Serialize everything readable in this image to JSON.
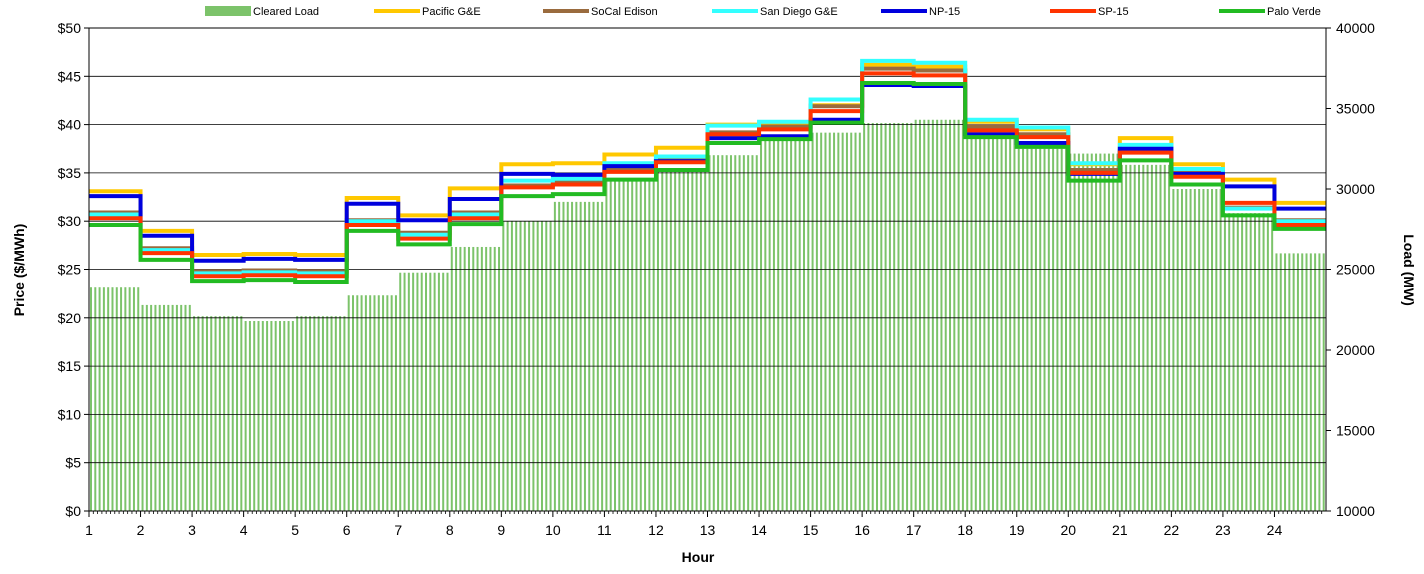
{
  "chart_data": {
    "type": "line",
    "hours": [
      "1",
      "2",
      "3",
      "4",
      "5",
      "6",
      "7",
      "8",
      "9",
      "10",
      "11",
      "12",
      "13",
      "14",
      "15",
      "16",
      "17",
      "18",
      "19",
      "20",
      "21",
      "22",
      "23",
      "24"
    ],
    "xlabel": "Hour",
    "ylabel_left": "Price ($/MWh)",
    "ylabel_right": "Load (MW)",
    "ylim_left": [
      0,
      50
    ],
    "ylim_right": [
      10000,
      40000
    ],
    "yticks_left": [
      "$0",
      "$5",
      "$10",
      "$15",
      "$20",
      "$25",
      "$30",
      "$35",
      "$40",
      "$45",
      "$50"
    ],
    "yticks_right": [
      "10000",
      "15000",
      "20000",
      "25000",
      "30000",
      "35000",
      "40000"
    ],
    "grid": "horizontal",
    "legend_position": "top",
    "load": {
      "name": "Cleared Load",
      "color": "#7cc36a",
      "values": [
        23900,
        22800,
        22100,
        21800,
        22100,
        23400,
        24800,
        26400,
        28000,
        29200,
        30500,
        31200,
        32100,
        33000,
        33500,
        34100,
        34300,
        33400,
        32500,
        32200,
        31500,
        30000,
        28500,
        26000
      ]
    },
    "series": [
      {
        "name": "Pacific G&E",
        "color": "#ffc800",
        "values": [
          33.1,
          29.0,
          26.5,
          26.6,
          26.5,
          32.4,
          30.6,
          33.4,
          35.9,
          36.0,
          36.9,
          37.6,
          40.0,
          40.1,
          42.0,
          46.2,
          46.0,
          40.3,
          39.5,
          35.9,
          38.6,
          35.9,
          34.3,
          31.9
        ]
      },
      {
        "name": "SoCal Edison",
        "color": "#9a6b3e",
        "values": [
          30.9,
          27.2,
          24.8,
          24.9,
          24.8,
          30.1,
          28.8,
          30.9,
          33.7,
          34.0,
          35.4,
          36.4,
          39.2,
          39.8,
          41.9,
          45.8,
          45.6,
          39.8,
          39.0,
          35.3,
          37.3,
          35.1,
          31.4,
          30.1
        ]
      },
      {
        "name": "San Diego G&E",
        "color": "#33ffff",
        "values": [
          30.7,
          27.0,
          24.6,
          24.7,
          24.6,
          30.0,
          28.6,
          30.7,
          34.2,
          34.4,
          36.0,
          36.7,
          39.9,
          40.3,
          42.6,
          46.6,
          46.4,
          40.5,
          39.7,
          36.0,
          37.9,
          35.4,
          31.3,
          30.0
        ]
      },
      {
        "name": "NP-15",
        "color": "#0000dd",
        "values": [
          32.6,
          28.5,
          25.9,
          26.1,
          26.0,
          31.8,
          30.1,
          32.3,
          34.9,
          34.8,
          35.7,
          36.2,
          38.6,
          38.8,
          40.5,
          44.1,
          44.0,
          39.0,
          38.1,
          34.9,
          37.5,
          34.9,
          33.6,
          31.3
        ]
      },
      {
        "name": "SP-15",
        "color": "#ff3300",
        "values": [
          30.3,
          26.7,
          24.3,
          24.4,
          24.3,
          29.6,
          28.2,
          30.3,
          33.5,
          33.8,
          35.1,
          36.1,
          39.0,
          39.5,
          41.4,
          45.3,
          45.1,
          39.4,
          38.7,
          35.0,
          37.1,
          34.6,
          31.9,
          29.6
        ]
      },
      {
        "name": "Palo Verde",
        "color": "#22bb22",
        "values": [
          29.6,
          26.0,
          23.8,
          23.9,
          23.7,
          29.0,
          27.6,
          29.7,
          32.6,
          32.8,
          34.3,
          35.3,
          38.1,
          38.5,
          40.2,
          44.3,
          44.2,
          38.7,
          37.7,
          34.2,
          36.3,
          33.8,
          30.6,
          29.2
        ]
      }
    ]
  }
}
